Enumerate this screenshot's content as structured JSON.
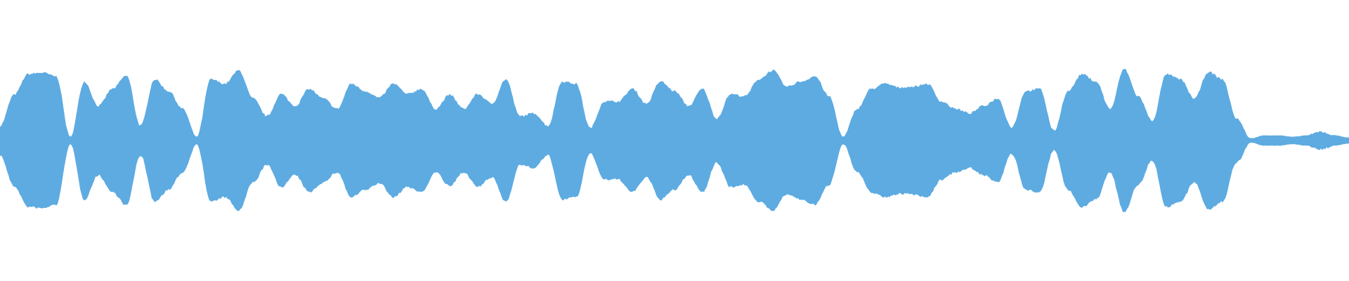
{
  "waveform": {
    "color": "#5dabe1",
    "background": "#ffffff",
    "amplitude_unit": "percent of peak",
    "envelope": [
      20,
      62,
      90,
      92,
      87,
      5,
      80,
      47,
      70,
      88,
      20,
      83,
      67,
      43,
      5,
      83,
      77,
      95,
      57,
      33,
      63,
      47,
      70,
      57,
      43,
      77,
      67,
      58,
      77,
      63,
      70,
      43,
      62,
      43,
      63,
      50,
      83,
      33,
      37,
      20,
      80,
      77,
      17,
      53,
      53,
      70,
      50,
      80,
      67,
      47,
      70,
      30,
      63,
      60,
      83,
      95,
      73,
      80,
      87,
      60,
      5,
      43,
      70,
      77,
      72,
      73,
      77,
      53,
      43,
      37,
      47,
      57,
      18,
      67,
      70,
      13,
      67,
      90,
      80,
      43,
      97,
      60,
      27,
      90,
      83,
      57,
      93,
      83,
      30,
      3,
      7,
      7,
      5,
      7,
      12,
      7,
      4
    ]
  }
}
